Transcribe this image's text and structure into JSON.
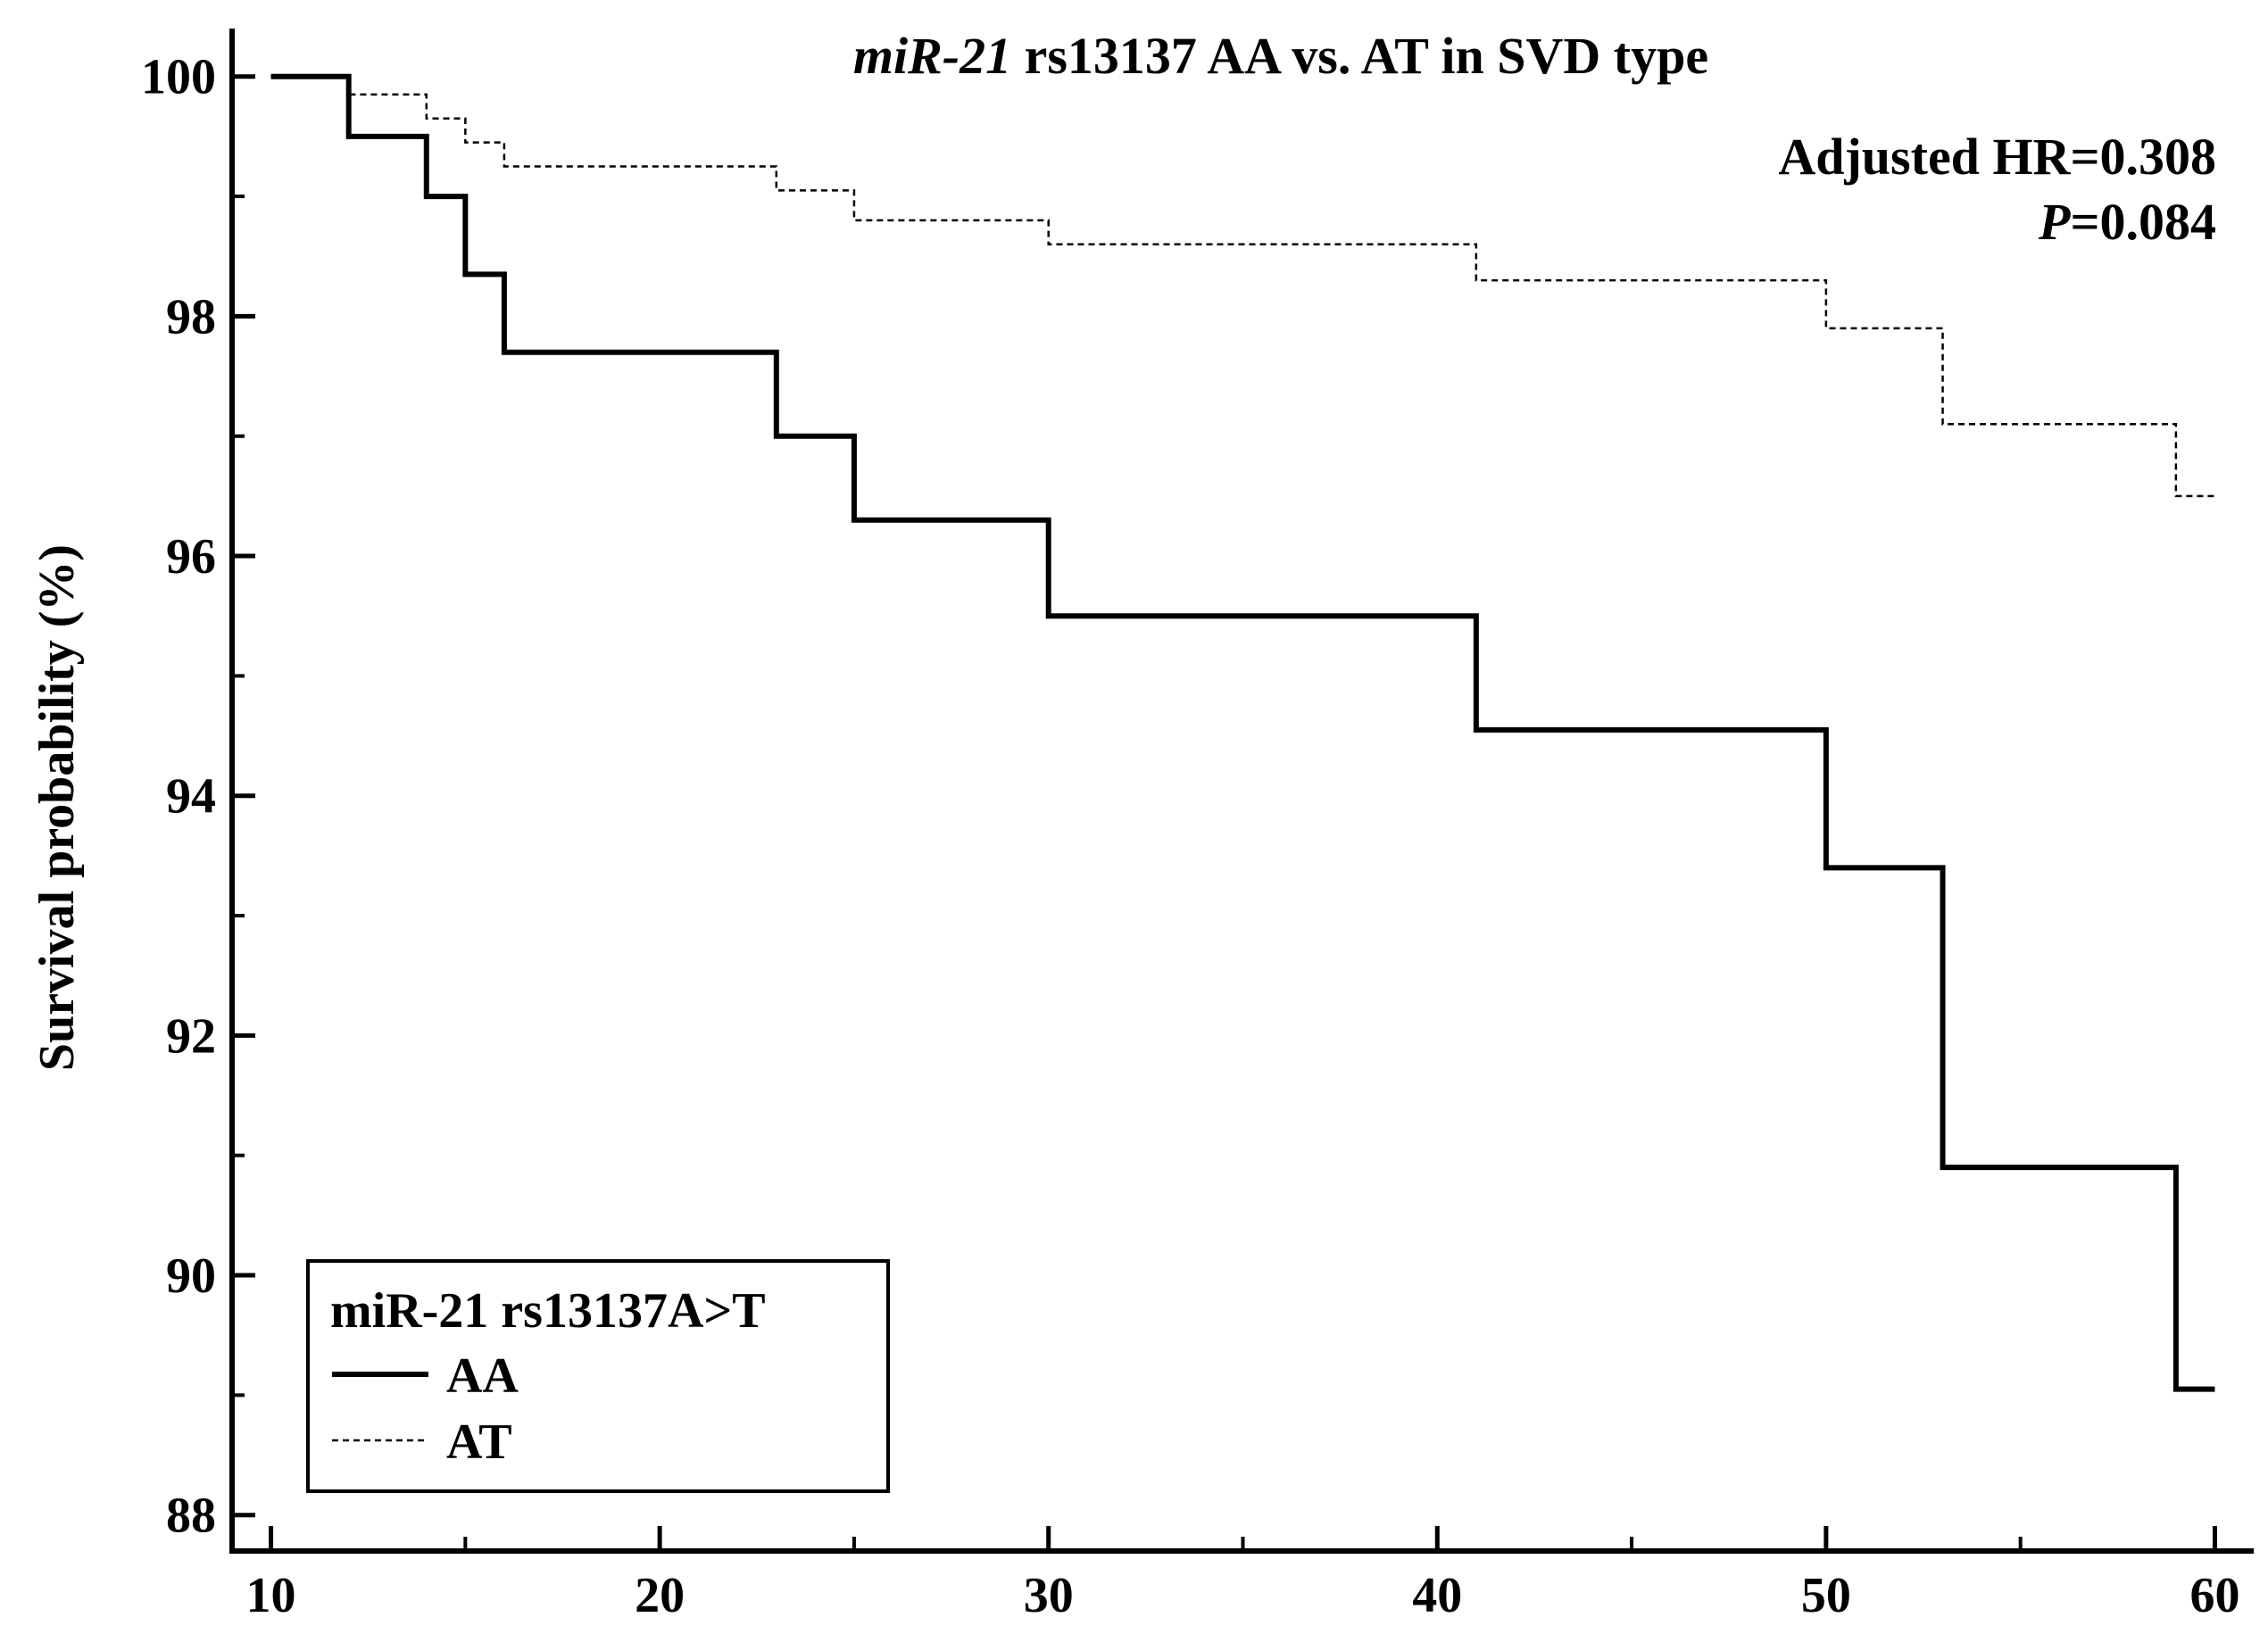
{
  "chart_data": {
    "type": "line",
    "title_italic": "miR-21",
    "title_rest": " rs13137 AA vs. AT in SVD type",
    "xlabel": "",
    "ylabel": "Survival probability (%)",
    "xlim": [
      9,
      61
    ],
    "ylim": [
      87.7,
      100.4
    ],
    "x_ticks": [
      10,
      20,
      30,
      40,
      50,
      60
    ],
    "y_ticks": [
      88,
      90,
      92,
      94,
      96,
      98,
      100
    ],
    "annotations": {
      "hr": "Adjusted HR=0.308",
      "p_italic": "P",
      "p_rest": "=0.084"
    },
    "legend": {
      "title": "miR-21 rs13137A>T",
      "position": "bottom-left"
    },
    "series": [
      {
        "name": "AA",
        "style": "solid",
        "color": "#000000",
        "x": [
          10,
          12,
          14,
          15,
          16,
          23,
          25,
          30,
          41,
          50,
          53,
          59,
          60
        ],
        "y": [
          100,
          99.5,
          99.0,
          98.35,
          97.7,
          97.0,
          96.3,
          95.5,
          94.55,
          93.4,
          90.9,
          89.05,
          89.05
        ]
      },
      {
        "name": "AT",
        "style": "dashed",
        "color": "#000000",
        "x": [
          10,
          12,
          14,
          15,
          16,
          23,
          25,
          30,
          41,
          50,
          53,
          59,
          60
        ],
        "y": [
          100,
          99.85,
          99.65,
          99.45,
          99.25,
          99.05,
          98.8,
          98.6,
          98.3,
          97.9,
          97.1,
          96.5,
          96.5
        ]
      }
    ]
  }
}
